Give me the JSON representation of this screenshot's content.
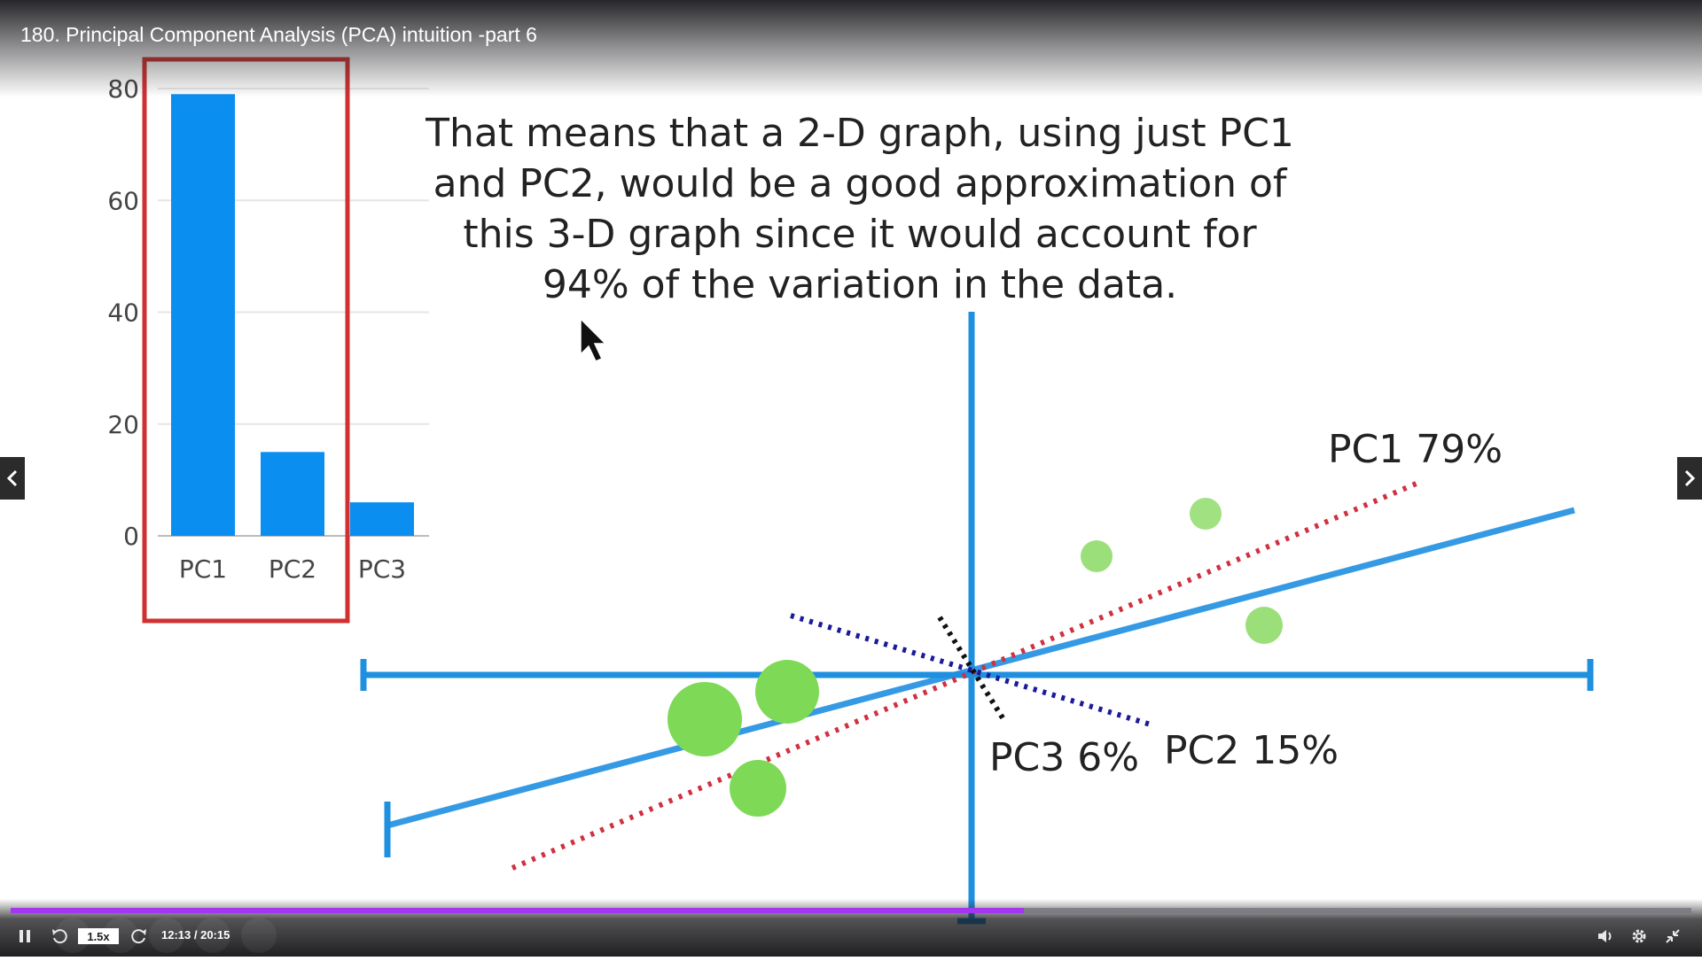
{
  "player": {
    "title": "180. Principal Component Analysis (PCA) intuition -part 6",
    "speed": "1.5x",
    "time": "12:13 / 20:15",
    "progress": 0.603,
    "accent": "#a435f0",
    "icons": [
      "pause-icon",
      "rewind-icon",
      "forward-icon",
      "volume-icon",
      "settings-icon",
      "exit-fullscreen-icon",
      "chevron-left-icon",
      "chevron-right-icon"
    ]
  },
  "slide": {
    "text_lines": [
      "That means that a 2-D graph, using just PC1",
      "and PC2, would be a good approximation of",
      "this 3-D graph since it would account for",
      "94% of the variation in the data."
    ],
    "labels": {
      "pc1": "PC1 79%",
      "pc2": "PC2 15%",
      "pc3": "PC3 6%"
    },
    "colors": {
      "bar": "#0a8ef0",
      "highlight_box": "#d03030",
      "axis": "#1f8fe0",
      "pc1_line": "#d03040",
      "pc2_line": "#1a1a9a",
      "pc3_line": "#111111",
      "points": "#7ed957"
    }
  },
  "chart_data": {
    "type": "bar",
    "categories": [
      "PC1",
      "PC2",
      "PC3"
    ],
    "values": [
      79,
      15,
      6
    ],
    "yticks": [
      "0",
      "20",
      "40",
      "60",
      "80"
    ],
    "ylim": [
      0,
      80
    ],
    "grid": true,
    "highlighted": [
      "PC1",
      "PC2"
    ]
  }
}
